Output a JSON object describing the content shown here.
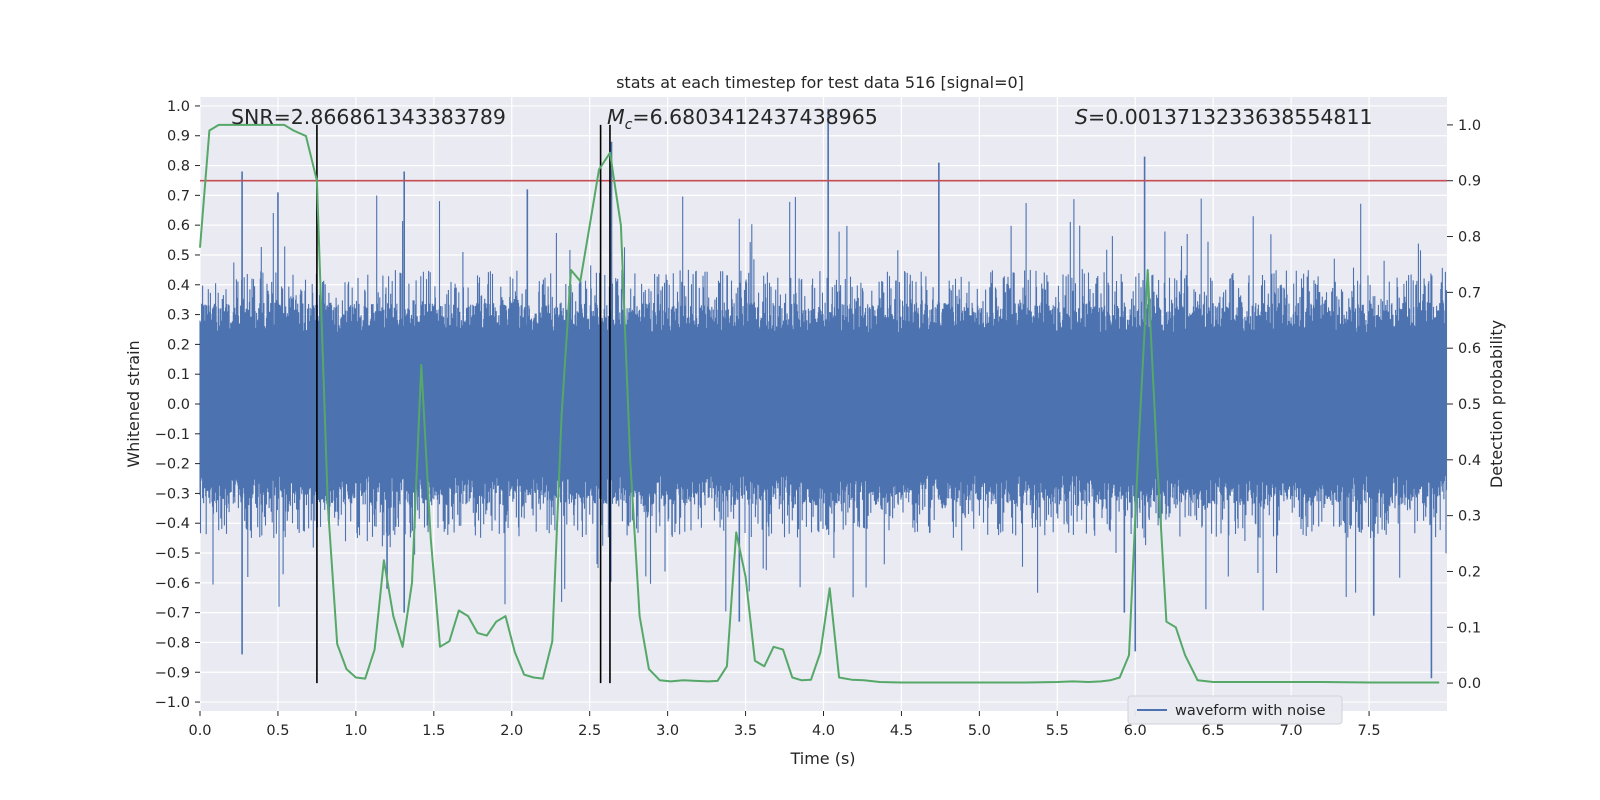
{
  "chart_data": {
    "type": "line",
    "title": "stats at each timestep for test data 516 [signal=0]",
    "xlabel": "Time (s)",
    "ylabel": "Whitened strain",
    "ylabel_right": "Detection probability",
    "xlim": [
      0.0,
      8.0
    ],
    "ylim": [
      -1.03,
      1.03
    ],
    "ylim_right": [
      -0.05,
      1.05
    ],
    "xticks": [
      "0.0",
      "0.5",
      "1.0",
      "1.5",
      "2.0",
      "2.5",
      "3.0",
      "3.5",
      "4.0",
      "4.5",
      "5.0",
      "5.5",
      "6.0",
      "6.5",
      "7.0",
      "7.5"
    ],
    "xtick_values": [
      0.0,
      0.5,
      1.0,
      1.5,
      2.0,
      2.5,
      3.0,
      3.5,
      4.0,
      4.5,
      5.0,
      5.5,
      6.0,
      6.5,
      7.0,
      7.5
    ],
    "yticks": [
      "1.0",
      "0.9",
      "0.8",
      "0.7",
      "0.6",
      "0.5",
      "0.4",
      "0.3",
      "0.2",
      "0.1",
      "0.0",
      "−0.1",
      "−0.2",
      "−0.3",
      "−0.4",
      "−0.5",
      "−0.6",
      "−0.7",
      "−0.8",
      "−0.9",
      "−1.0"
    ],
    "ytick_values": [
      1.0,
      0.9,
      0.8,
      0.7,
      0.6,
      0.5,
      0.4,
      0.3,
      0.2,
      0.1,
      0.0,
      -0.1,
      -0.2,
      -0.3,
      -0.4,
      -0.5,
      -0.6,
      -0.7,
      -0.8,
      -0.9,
      -1.0
    ],
    "yticks_right": [
      "1.0",
      "0.9",
      "0.8",
      "0.7",
      "0.6",
      "0.5",
      "0.4",
      "0.3",
      "0.2",
      "0.1",
      "0.0"
    ],
    "ytick_values_right": [
      1.0,
      0.9,
      0.8,
      0.7,
      0.6,
      0.5,
      0.4,
      0.3,
      0.2,
      0.1,
      0.0
    ],
    "annotations": {
      "snr": "SNR=2.866861343383789",
      "mc": "=6.6803412437438965",
      "mc_symbol": "M",
      "mc_sub": "c",
      "s": "=0.0013713233638554811",
      "s_symbol": "S"
    },
    "legend": {
      "label": "waveform with noise",
      "location": "lower-right"
    },
    "threshold": {
      "value": 0.9,
      "axis": "right",
      "color": "#c44e52"
    },
    "vlines": [
      0.75,
      2.57,
      2.63
    ],
    "vline_range_right": [
      0.0,
      1.0
    ],
    "waveform": {
      "name": "waveform with noise",
      "color": "#4c72b0",
      "t_start": 0.0,
      "t_end": 8.0,
      "core_amplitude": 0.24,
      "typical_peak": 0.45,
      "noise_seed": 516,
      "spikes": [
        {
          "t": 0.27,
          "v": 0.78
        },
        {
          "t": 0.27,
          "v": -0.84
        },
        {
          "t": 1.31,
          "v": 0.78
        },
        {
          "t": 1.31,
          "v": -0.7
        },
        {
          "t": 2.1,
          "v": 0.72
        },
        {
          "t": 2.64,
          "v": 0.88
        },
        {
          "t": 4.03,
          "v": 0.99
        },
        {
          "t": 4.74,
          "v": 0.81
        },
        {
          "t": 6.06,
          "v": 0.83
        },
        {
          "t": 6.0,
          "v": -0.83
        },
        {
          "t": 5.93,
          "v": -0.7
        },
        {
          "t": 7.9,
          "v": -0.92
        },
        {
          "t": 7.53,
          "v": -0.71
        },
        {
          "t": 3.46,
          "v": -0.73
        },
        {
          "t": 0.5,
          "v": 0.71
        },
        {
          "t": 1.2,
          "v": -0.62
        }
      ]
    },
    "detection_probability": {
      "color": "#55a868",
      "t": [
        0.0,
        0.06,
        0.12,
        0.18,
        0.24,
        0.3,
        0.36,
        0.42,
        0.48,
        0.54,
        0.6,
        0.68,
        0.75,
        0.82,
        0.88,
        0.94,
        1.0,
        1.06,
        1.12,
        1.18,
        1.24,
        1.3,
        1.36,
        1.42,
        1.48,
        1.54,
        1.6,
        1.66,
        1.72,
        1.78,
        1.84,
        1.9,
        1.96,
        2.02,
        2.08,
        2.14,
        2.2,
        2.26,
        2.32,
        2.38,
        2.44,
        2.5,
        2.56,
        2.63,
        2.7,
        2.76,
        2.82,
        2.88,
        2.95,
        3.02,
        3.1,
        3.18,
        3.26,
        3.32,
        3.38,
        3.44,
        3.5,
        3.56,
        3.62,
        3.68,
        3.74,
        3.8,
        3.86,
        3.92,
        3.98,
        4.04,
        4.1,
        4.18,
        4.26,
        4.36,
        4.5,
        4.7,
        5.0,
        5.3,
        5.5,
        5.6,
        5.7,
        5.78,
        5.84,
        5.9,
        5.96,
        6.02,
        6.08,
        6.14,
        6.2,
        6.26,
        6.32,
        6.4,
        6.5,
        6.7,
        6.9,
        7.2,
        7.5,
        7.8,
        7.95
      ],
      "values": [
        0.78,
        0.99,
        1.0,
        1.0,
        1.0,
        1.0,
        1.0,
        1.0,
        1.0,
        1.0,
        0.99,
        0.98,
        0.9,
        0.32,
        0.07,
        0.025,
        0.01,
        0.008,
        0.06,
        0.22,
        0.12,
        0.065,
        0.18,
        0.57,
        0.26,
        0.065,
        0.075,
        0.13,
        0.12,
        0.09,
        0.085,
        0.11,
        0.12,
        0.055,
        0.015,
        0.01,
        0.008,
        0.075,
        0.48,
        0.74,
        0.72,
        0.82,
        0.92,
        0.95,
        0.82,
        0.4,
        0.12,
        0.025,
        0.005,
        0.003,
        0.005,
        0.004,
        0.003,
        0.004,
        0.03,
        0.27,
        0.19,
        0.04,
        0.03,
        0.065,
        0.06,
        0.01,
        0.005,
        0.006,
        0.055,
        0.17,
        0.01,
        0.006,
        0.005,
        0.002,
        0.001,
        0.001,
        0.001,
        0.001,
        0.002,
        0.003,
        0.002,
        0.003,
        0.005,
        0.01,
        0.05,
        0.42,
        0.74,
        0.4,
        0.11,
        0.1,
        0.05,
        0.005,
        0.002,
        0.002,
        0.002,
        0.002,
        0.001,
        0.001,
        0.001
      ]
    }
  }
}
